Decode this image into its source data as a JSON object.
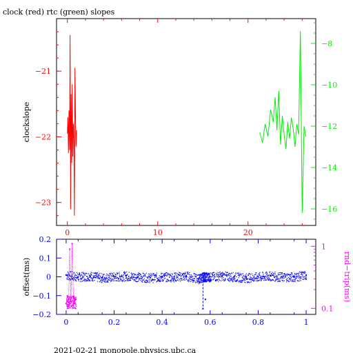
{
  "title": "clock (red) rtc (green) slopes",
  "footer": "2021-02-21  monopole.physics.ubc.ca",
  "colors": {
    "clock": "#ff0000",
    "rtc": "#00ee00",
    "offset": "#0000ff",
    "roundtrip": "#ff00ff",
    "axes": "#000000"
  },
  "chart_data": [
    {
      "type": "line",
      "title": "clock (red) rtc (green) slopes",
      "xlim": [
        -1.2,
        27.5
      ],
      "x_ticks": [
        0,
        10,
        20
      ],
      "x_ticklabels": [
        "0",
        "10",
        "20"
      ],
      "ylabel": "clockslope",
      "ylim": [
        -23.35,
        -20.2
      ],
      "y_ticks": [
        -21,
        -22,
        -23
      ],
      "y_ticklabels": [
        "−21",
        "−22",
        "−23"
      ],
      "y2lim": [
        -16.8,
        -6.8
      ],
      "y2_ticks": [
        -8,
        -10,
        -12,
        -14,
        -16
      ],
      "y2_ticklabels": [
        "−8",
        "−10",
        "−12",
        "−14",
        "−16"
      ],
      "series": [
        {
          "color": "#ff0000",
          "axis": "left",
          "x": [
            0.0,
            0.06,
            0.12,
            0.18,
            0.24,
            0.3,
            0.36,
            0.42,
            0.48,
            0.54,
            0.6,
            0.66,
            0.72,
            0.78,
            0.84,
            0.9,
            0.96,
            1.02
          ],
          "y": [
            -21.95,
            -21.7,
            -22.25,
            -21.6,
            -22.2,
            -20.45,
            -23.1,
            -21.35,
            -22.4,
            -21.2,
            -22.3,
            -21.8,
            -22.05,
            -23.2,
            -20.95,
            -21.7,
            -22.15,
            -21.9
          ]
        },
        {
          "color": "#00ee00",
          "axis": "right",
          "x": [
            21.3,
            21.6,
            21.9,
            22.2,
            22.5,
            22.8,
            23.0,
            23.2,
            23.4,
            23.6,
            23.8,
            24.0,
            24.2,
            24.4,
            24.6,
            24.8,
            25.0,
            25.2,
            25.4,
            25.6,
            25.8,
            26.0,
            26.2,
            26.4
          ],
          "y": [
            -12.3,
            -12.8,
            -11.9,
            -12.5,
            -11.2,
            -11.8,
            -10.6,
            -12.2,
            -10.3,
            -12.9,
            -11.5,
            -12.4,
            -13.1,
            -11.8,
            -12.6,
            -11.6,
            -12.1,
            -13.0,
            -11.9,
            -12.4,
            -7.4,
            -16.2,
            -12.0,
            -12.5
          ]
        }
      ]
    },
    {
      "type": "scatter",
      "xlim": [
        -0.04,
        1.04
      ],
      "x_ticks": [
        0,
        0.2,
        0.4,
        0.6,
        0.8,
        1
      ],
      "x_ticklabels": [
        "0",
        "0.2",
        "0.4",
        "0.6",
        "0.8",
        "1"
      ],
      "ylabel": "offset(ms)",
      "ylim": [
        -0.2,
        0.2
      ],
      "y_ticks": [
        0.2,
        0.1,
        0,
        -0.1,
        -0.2
      ],
      "y_ticklabels": [
        "0.2",
        "0.1",
        "0",
        "−0.1",
        "−0.2"
      ],
      "y2label": "rnd−trip(ms)",
      "y2_scale": "log",
      "y2lim": [
        0.08,
        1.3
      ],
      "y2_ticks": [
        1,
        0.1
      ],
      "y2_ticklabels": [
        "1",
        "0.1"
      ],
      "series": [
        {
          "color": "#0000ff",
          "axis": "left",
          "x": [
            0.0,
            0.05,
            0.1,
            0.15,
            0.2,
            0.25,
            0.3,
            0.35,
            0.4,
            0.45,
            0.5,
            0.55,
            0.57,
            0.58,
            0.6,
            0.65,
            0.7,
            0.75,
            0.8,
            0.85,
            0.9,
            0.95,
            1.0
          ],
          "y": [
            0.01,
            0.0,
            0.005,
            -0.005,
            0.0,
            0.005,
            0.0,
            -0.005,
            0.0,
            0.0,
            0.005,
            -0.01,
            -0.17,
            -0.12,
            0.0,
            0.005,
            0.0,
            -0.005,
            0.0,
            0.005,
            0.0,
            0.0,
            0.01
          ]
        },
        {
          "color": "#ff00ff",
          "axis": "right",
          "x": [
            0.0,
            0.005,
            0.01,
            0.015,
            0.02,
            0.025,
            0.03,
            0.035,
            0.04
          ],
          "y": [
            0.12,
            0.16,
            0.11,
            0.9,
            0.13,
            1.1,
            0.15,
            0.12,
            0.14
          ]
        }
      ]
    }
  ]
}
